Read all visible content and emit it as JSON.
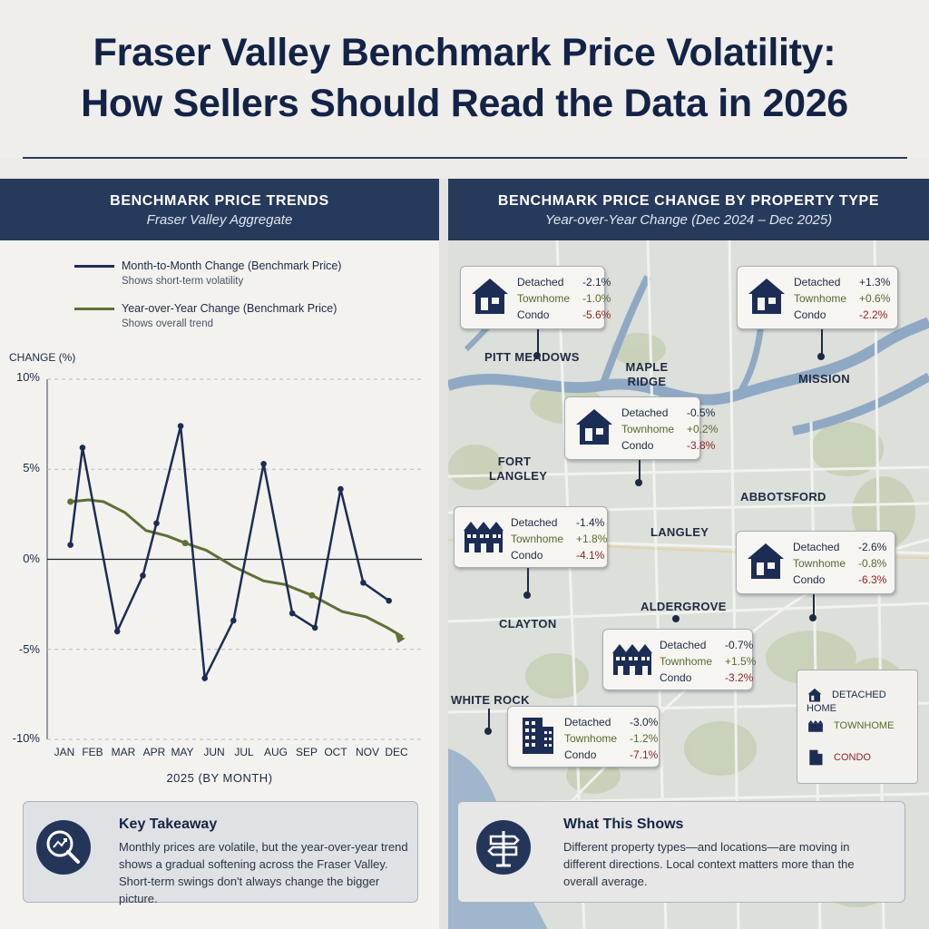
{
  "title_line1": "Fraser Valley Benchmark Price Volatility:",
  "title_line2": "How Sellers Should Read the Data in 2026",
  "left_panel": {
    "heading": "Benchmark Price Trends",
    "subheading": "Fraser Valley Aggregate",
    "legend": [
      {
        "label": "Month-to-Month Change (Benchmark Price)",
        "sub": "Shows short-term volatility",
        "color": "#1c2d55"
      },
      {
        "label": "Year-over-Year Change (Benchmark Price)",
        "sub": "Shows overall trend",
        "color": "#5f7035"
      }
    ],
    "axis_title": "CHANGE (%)",
    "x_title": "2025 (BY MONTH)"
  },
  "chart_data": {
    "type": "line",
    "title": "Benchmark Price Trends",
    "subtitle": "Fraser Valley Aggregate",
    "xlabel": "2025 (BY MONTH)",
    "ylabel": "CHANGE (%)",
    "x": [
      "JAN",
      "FEB",
      "MAR",
      "APR",
      "MAY",
      "JUN",
      "JUL",
      "AUG",
      "SEP",
      "OCT",
      "NOV",
      "DEC"
    ],
    "ylim": [
      -10,
      10
    ],
    "yticks": [
      "10%",
      "5%",
      "0%",
      "-5%",
      "-10%"
    ],
    "ytick_values": [
      10,
      5,
      0,
      -5,
      -10
    ],
    "grid": "horizontal dashed",
    "zero_line": true,
    "series": [
      {
        "name": "Month-to-Month Change (Benchmark Price)",
        "color": "#1c2d55",
        "points": [
          [
            1.2,
            0.8
          ],
          [
            1.6,
            6.2
          ],
          [
            2.75,
            -4.0
          ],
          [
            3.6,
            -0.9
          ],
          [
            4.05,
            2.0
          ],
          [
            4.85,
            7.4
          ],
          [
            5.65,
            -6.6
          ],
          [
            6.6,
            -3.4
          ],
          [
            7.6,
            5.3
          ],
          [
            8.55,
            -3.0
          ],
          [
            9.3,
            -3.8
          ],
          [
            10.15,
            3.9
          ],
          [
            10.9,
            -1.3
          ],
          [
            11.75,
            -2.3
          ]
        ]
      },
      {
        "name": "Year-over-Year Change (Benchmark Price)",
        "color": "#5f7035",
        "points": [
          [
            1.2,
            3.2
          ],
          [
            1.8,
            3.3
          ],
          [
            2.3,
            3.2
          ],
          [
            3.0,
            2.6
          ],
          [
            3.7,
            1.6
          ],
          [
            4.4,
            1.3
          ],
          [
            5.0,
            0.9
          ],
          [
            5.7,
            0.5
          ],
          [
            6.6,
            -0.4
          ],
          [
            7.6,
            -1.2
          ],
          [
            8.3,
            -1.4
          ],
          [
            9.2,
            -2.0
          ],
          [
            10.2,
            -2.9
          ],
          [
            11.0,
            -3.2
          ],
          [
            11.7,
            -3.8
          ],
          [
            12.2,
            -4.3
          ]
        ]
      }
    ]
  },
  "left_takeaway": {
    "heading": "Key Takeaway",
    "body": "Monthly prices are volatile, but the year-over-year trend shows a gradual softening across the Fraser Valley. Short-term swings don't always change the bigger picture."
  },
  "right_panel": {
    "heading": "Benchmark Price Change by Property Type",
    "subheading": "Year-over-Year Change (Dec 2024 – Dec 2025)",
    "row_labels": {
      "detached": "Detached",
      "townhome": "Townhome",
      "condo": "Condo"
    },
    "places": [
      "PITT MEADOWS",
      "MAPLE RIDGE",
      "MISSION",
      "FORT LANGLEY",
      "ABBOTSFORD",
      "LANGLEY",
      "ALDERGROVE",
      "CLAYTON",
      "WHITE ROCK"
    ],
    "callouts": [
      {
        "icon": "house",
        "detached": "-2.1%",
        "townhome": "-1.0%",
        "condo": "-5.6%"
      },
      {
        "icon": "house",
        "detached": "+1.3%",
        "townhome": "+0.6%",
        "condo": "-2.2%"
      },
      {
        "icon": "house",
        "detached": "-0.5%",
        "townhome": "+0.2%",
        "condo": "-3.8%"
      },
      {
        "icon": "townhome",
        "detached": "-1.4%",
        "townhome": "+1.8%",
        "condo": "-4.1%"
      },
      {
        "icon": "house",
        "detached": "-2.6%",
        "townhome": "-0.8%",
        "condo": "-6.3%"
      },
      {
        "icon": "townhome",
        "detached": "-0.7%",
        "townhome": "+1.5%",
        "condo": "-3.2%"
      },
      {
        "icon": "condo",
        "detached": "-3.0%",
        "townhome": "-1.2%",
        "condo": "-7.1%"
      }
    ],
    "legend": {
      "detached": "DETACHED HOME",
      "townhome": "TOWNHOME",
      "condo": "CONDO"
    }
  },
  "right_takeaway": {
    "heading": "What This Shows",
    "body": "Different property types—and locations—are moving in different directions. Local context matters more than the overall average."
  },
  "colors": {
    "navy": "#1c2d55",
    "olive": "#5f7035",
    "negative": "#8e2424",
    "header": "#263a5c"
  }
}
